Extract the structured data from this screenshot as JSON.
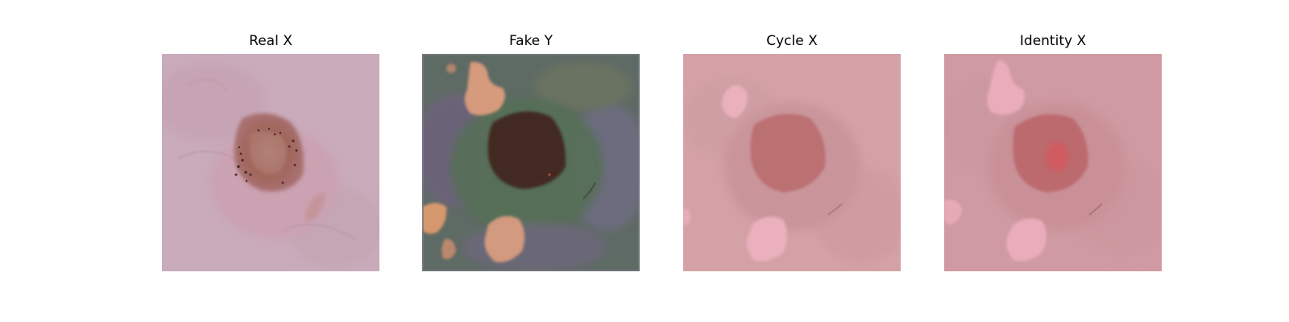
{
  "figure": {
    "panels": [
      {
        "title": "Real X",
        "image": "dermoscopy-skin-lesion-original",
        "colors": {
          "background": "#c8a9b7",
          "lesion": "#9a5f56",
          "dots": "#4a2a22"
        }
      },
      {
        "title": "Fake Y",
        "image": "dermoscopy-skin-lesion-translated",
        "colors": {
          "background": "#5d6a62",
          "lesion": "#422a22",
          "blobs": "#d49a7e"
        }
      },
      {
        "title": "Cycle X",
        "image": "dermoscopy-skin-lesion-cycle-reconstruction",
        "colors": {
          "background": "#d3a0a4",
          "lesion": "#bb6f72",
          "blobs": "#eaaebd"
        }
      },
      {
        "title": "Identity X",
        "image": "dermoscopy-skin-lesion-identity-mapping",
        "colors": {
          "background": "#cf9aa2",
          "lesion": "#bd6a6e",
          "blobs": "#e9acbb"
        }
      }
    ]
  }
}
